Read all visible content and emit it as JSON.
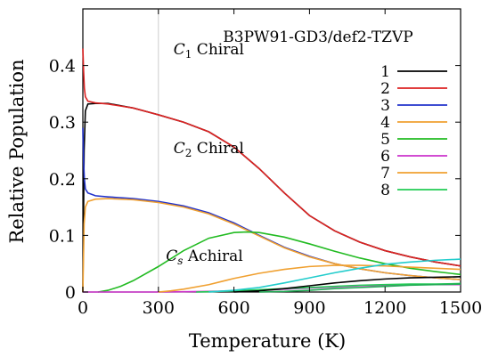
{
  "chart_data": {
    "type": "line",
    "title": "B3PW91-GD3/def2-TZVP",
    "xlabel": "Temperature (K)",
    "ylabel": "Relative Population",
    "xlim": [
      0,
      1500
    ],
    "ylim": [
      0,
      0.5
    ],
    "xticks": [
      0,
      300,
      600,
      900,
      1200,
      1500
    ],
    "xtick_labels": [
      "0",
      "300",
      "600",
      "900",
      "1200",
      "1500"
    ],
    "yticks": [
      0,
      0.1,
      0.2,
      0.3,
      0.4
    ],
    "ytick_labels": [
      "0",
      "0.1",
      "0.2",
      "0.3",
      "0.4"
    ],
    "reference_line_x": 300,
    "grid": false,
    "legend_position": "top-right",
    "annotations": [
      {
        "main": "C",
        "sub": "1",
        "rest": " Chiral",
        "x": 360,
        "y": 0.42
      },
      {
        "main": "C",
        "sub": "2",
        "rest": " Chiral",
        "x": 360,
        "y": 0.245
      },
      {
        "main": "C",
        "sub": "s",
        "rest": " Achiral",
        "x": 330,
        "y": 0.055
      }
    ],
    "series": [
      {
        "name": "1",
        "color": "#000000",
        "x": [
          0,
          5,
          10,
          20,
          50,
          100,
          200,
          300,
          400,
          500,
          600,
          700,
          800,
          900,
          1000,
          1100,
          1200,
          1300,
          1400,
          1500
        ],
        "y": [
          0,
          0.25,
          0.32,
          0.332,
          0.333,
          0.333,
          0.325,
          0.313,
          0.3,
          0.283,
          0.256,
          0.218,
          0.175,
          0.135,
          0.108,
          0.088,
          0.073,
          0.062,
          0.053,
          0.046
        ]
      },
      {
        "name": "2",
        "color": "#dd2222",
        "x": [
          0,
          3,
          6,
          10,
          20,
          50,
          100,
          200,
          300,
          400,
          500,
          600,
          700,
          800,
          900,
          1000,
          1100,
          1200,
          1300,
          1400,
          1500
        ],
        "y": [
          0.43,
          0.39,
          0.36,
          0.345,
          0.337,
          0.334,
          0.332,
          0.325,
          0.313,
          0.3,
          0.283,
          0.256,
          0.218,
          0.175,
          0.135,
          0.108,
          0.088,
          0.073,
          0.062,
          0.053,
          0.046
        ]
      },
      {
        "name": "3",
        "color": "#2233cc",
        "x": [
          0,
          3,
          6,
          10,
          20,
          50,
          100,
          200,
          300,
          400,
          500,
          600,
          700,
          800,
          900,
          1000,
          1100,
          1200,
          1300,
          1400,
          1500
        ],
        "y": [
          0.29,
          0.23,
          0.2,
          0.182,
          0.175,
          0.17,
          0.168,
          0.165,
          0.16,
          0.152,
          0.14,
          0.122,
          0.1,
          0.079,
          0.063,
          0.05,
          0.041,
          0.034,
          0.029,
          0.025,
          0.022
        ]
      },
      {
        "name": "4",
        "color": "#f0a030",
        "x": [
          0,
          5,
          10,
          20,
          50,
          100,
          200,
          300,
          400,
          500,
          600,
          700,
          800,
          900,
          1000,
          1100,
          1200,
          1300,
          1400,
          1500
        ],
        "y": [
          0,
          0.12,
          0.15,
          0.16,
          0.164,
          0.165,
          0.163,
          0.158,
          0.15,
          0.138,
          0.12,
          0.099,
          0.078,
          0.062,
          0.05,
          0.041,
          0.034,
          0.029,
          0.025,
          0.022
        ]
      },
      {
        "name": "5",
        "color": "#22bb22",
        "x": [
          60,
          100,
          150,
          200,
          300,
          400,
          500,
          600,
          650,
          700,
          800,
          900,
          1000,
          1100,
          1200,
          1300,
          1400,
          1500
        ],
        "y": [
          0,
          0.003,
          0.01,
          0.02,
          0.045,
          0.073,
          0.095,
          0.105,
          0.106,
          0.105,
          0.097,
          0.085,
          0.072,
          0.06,
          0.05,
          0.042,
          0.036,
          0.031
        ]
      },
      {
        "name": "6",
        "color": "#cc33cc",
        "x": [
          0,
          300,
          400,
          500,
          600,
          700,
          800,
          900,
          1000,
          1100,
          1200,
          1300,
          1400,
          1500
        ],
        "y": [
          0,
          0,
          0.0005,
          0.001,
          0.002,
          0.003,
          0.005,
          0.007,
          0.009,
          0.011,
          0.012,
          0.013,
          0.013,
          0.013
        ]
      },
      {
        "name": "7",
        "color": "#f0a030",
        "x": [
          300,
          350,
          400,
          500,
          600,
          700,
          800,
          900,
          1000,
          1100,
          1200,
          1300,
          1400,
          1500
        ],
        "y": [
          0,
          0.002,
          0.005,
          0.013,
          0.024,
          0.033,
          0.04,
          0.045,
          0.047,
          0.047,
          0.046,
          0.044,
          0.042,
          0.04
        ]
      },
      {
        "name": "8",
        "color": "#22cc55",
        "x": [
          450,
          500,
          600,
          700,
          800,
          900,
          1000,
          1100,
          1200,
          1300,
          1400,
          1500
        ],
        "y": [
          0,
          0.0005,
          0.002,
          0.004,
          0.006,
          0.008,
          0.01,
          0.012,
          0.013,
          0.014,
          0.014,
          0.015
        ]
      },
      {
        "color": "#22cccc",
        "x": [
          500,
          600,
          700,
          800,
          900,
          1000,
          1100,
          1200,
          1300,
          1400,
          1500
        ],
        "y": [
          0,
          0.003,
          0.008,
          0.016,
          0.025,
          0.034,
          0.042,
          0.049,
          0.053,
          0.056,
          0.058
        ]
      },
      {
        "color": "#000000",
        "x": [
          600,
          700,
          800,
          900,
          1000,
          1100,
          1200,
          1300,
          1400,
          1500
        ],
        "y": [
          0,
          0.002,
          0.006,
          0.011,
          0.016,
          0.02,
          0.023,
          0.025,
          0.026,
          0.027
        ]
      },
      {
        "color": "#22aa55",
        "x": [
          700,
          800,
          900,
          1000,
          1100,
          1200,
          1300,
          1400,
          1500
        ],
        "y": [
          0,
          0.001,
          0.003,
          0.006,
          0.008,
          0.01,
          0.012,
          0.013,
          0.014
        ]
      }
    ]
  }
}
